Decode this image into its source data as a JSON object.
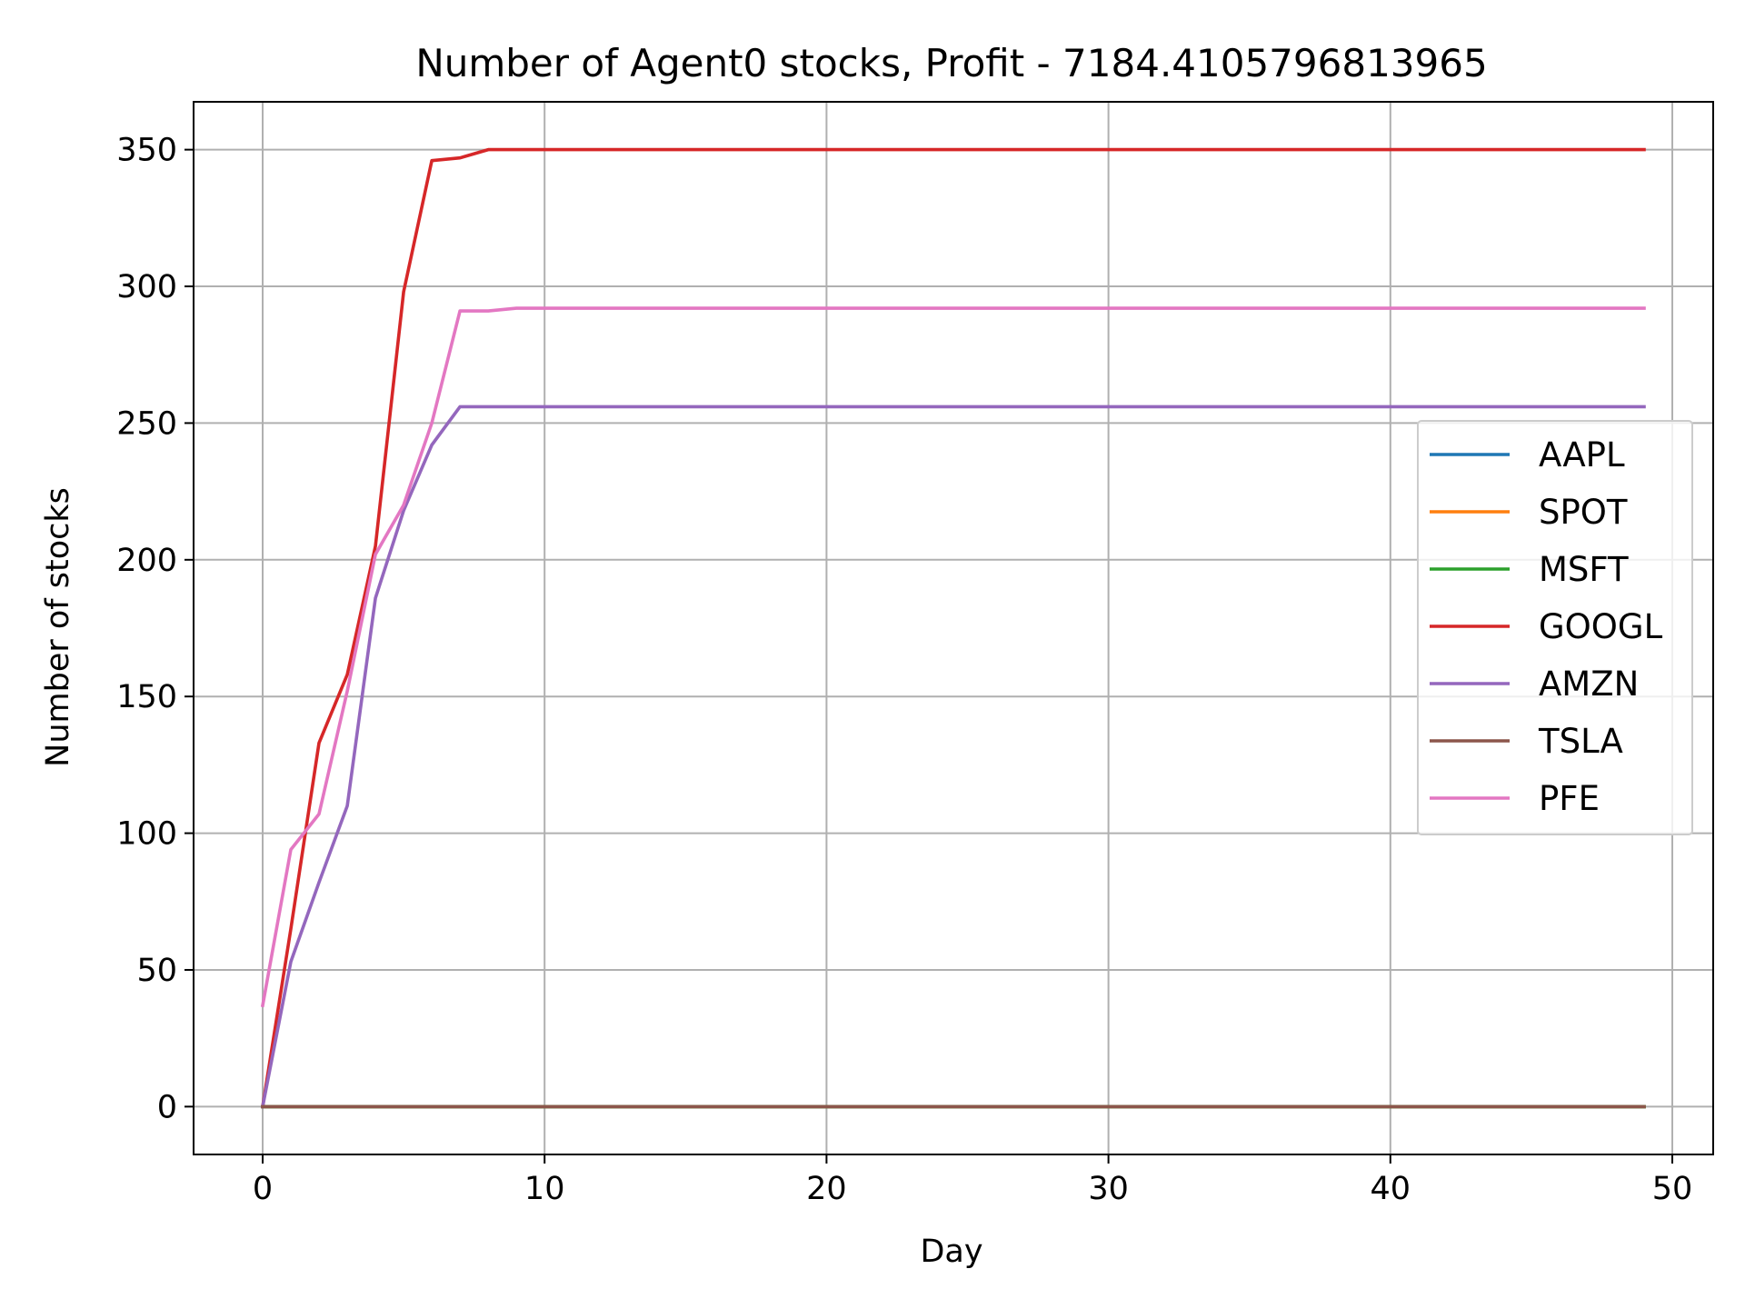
{
  "chart_data": {
    "type": "line",
    "title": "Number of Agent0 stocks, Profit - 7184.4105796813965",
    "xlabel": "Day",
    "ylabel": "Number of stocks",
    "xlim": [
      -2.45,
      51.45
    ],
    "ylim": [
      -17.5,
      367.5
    ],
    "xticks": [
      0,
      10,
      20,
      30,
      40,
      50
    ],
    "yticks": [
      0,
      50,
      100,
      150,
      200,
      250,
      300,
      350
    ],
    "grid": true,
    "legend_position": "center-right",
    "series": [
      {
        "name": "AAPL",
        "color": "#1f77b4",
        "x": [
          0,
          49
        ],
        "y": [
          0,
          0
        ]
      },
      {
        "name": "SPOT",
        "color": "#ff7f0e",
        "x": [
          0,
          49
        ],
        "y": [
          0,
          0
        ]
      },
      {
        "name": "MSFT",
        "color": "#2ca02c",
        "x": [
          0,
          49
        ],
        "y": [
          0,
          0
        ]
      },
      {
        "name": "GOOGL",
        "color": "#d62728",
        "x": [
          0,
          1,
          2,
          3,
          4,
          5,
          6,
          7,
          8,
          49
        ],
        "y": [
          0,
          65,
          133,
          158,
          205,
          298,
          346,
          347,
          350,
          350
        ]
      },
      {
        "name": "AMZN",
        "color": "#9467bd",
        "x": [
          0,
          1,
          2,
          3,
          4,
          5,
          6,
          7,
          49
        ],
        "y": [
          0,
          53,
          82,
          110,
          186,
          218,
          242,
          256,
          256
        ]
      },
      {
        "name": "TSLA",
        "color": "#8c564b",
        "x": [
          0,
          49
        ],
        "y": [
          0,
          0
        ]
      },
      {
        "name": "PFE",
        "color": "#e377c2",
        "x": [
          0,
          1,
          2,
          3,
          4,
          5,
          6,
          7,
          8,
          9,
          49
        ],
        "y": [
          37,
          94,
          107,
          152,
          202,
          220,
          250,
          291,
          291,
          292,
          292
        ]
      }
    ]
  }
}
